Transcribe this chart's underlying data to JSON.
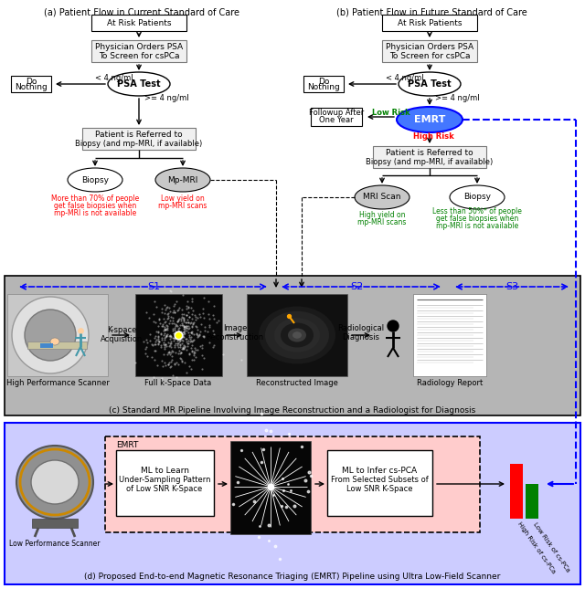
{
  "title_a": "(a) Patient Flow in Current Standard of Care",
  "title_b": "(b) Patient Flow in Future Standard of Care",
  "title_c": "(c) Standard MR Pipeline Involving Image Reconstruction and a Radiologist for Diagnosis",
  "title_d": "(d) Proposed End-to-end Magnetic Resonance Triaging (EMRT) Pipeline using Ultra Low-Field Scanner",
  "red_color": "#FF0000",
  "green_color": "#008000",
  "blue_color": "#0000FF",
  "light_gray": "#C8C8C8",
  "blue_fill": "#4477FF",
  "panel_c_bg": "#B8B8B8",
  "panel_d_bg": "#CCCCFF",
  "panel_d_inner_bg": "#FFCCCC"
}
